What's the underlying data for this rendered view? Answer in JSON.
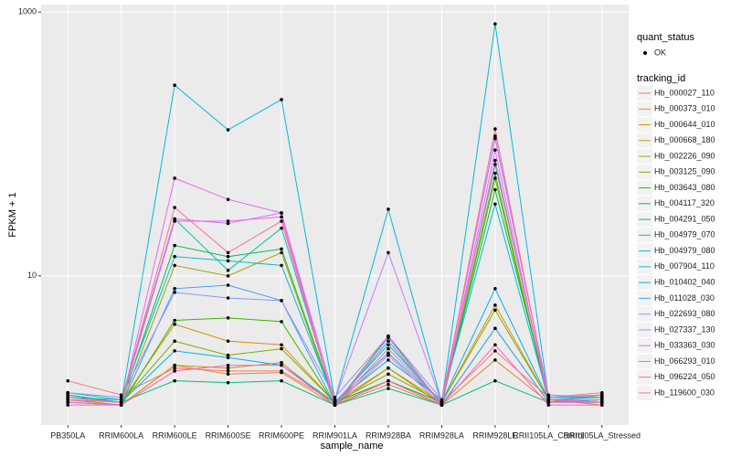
{
  "chart_data": {
    "type": "line",
    "log_y": true,
    "grid": true,
    "xlabel": "sample_name",
    "ylabel": "FPKM + 1",
    "categories": [
      "PB350LA",
      "RRIM600LA",
      "RRIM600LE",
      "RRIM600SE",
      "RRIM600PE",
      "RRIM901LA",
      "RRIM928BA",
      "RRIM928LA",
      "RRIM928LE",
      "RRII105LA_Control",
      "RRII105LA_Stressed"
    ],
    "ylim": [
      0.74,
      1140
    ],
    "yticks": [
      10,
      1000
    ],
    "point_legend": {
      "title": "quant_status",
      "label": "OK",
      "color": "#000000"
    },
    "legend_title": "tracking_id",
    "series": [
      {
        "name": "Hb_000027_110",
        "color": "#F8766D",
        "values": [
          1.6,
          1.25,
          2.0,
          1.9,
          1.9,
          1.1,
          1.6,
          1.1,
          2.7,
          1.2,
          1.3
        ]
      },
      {
        "name": "Hb_000373_010",
        "color": "#EA8331",
        "values": [
          1.15,
          1.05,
          2.1,
          1.8,
          1.85,
          1.05,
          1.5,
          1.05,
          2.3,
          1.1,
          1.15
        ]
      },
      {
        "name": "Hb_000644_010",
        "color": "#D89000",
        "values": [
          1.2,
          1.1,
          4.3,
          3.2,
          3.0,
          1.1,
          2.0,
          1.1,
          6.0,
          1.15,
          1.05
        ]
      },
      {
        "name": "Hb_000668_180",
        "color": "#C09B00",
        "values": [
          1.1,
          1.05,
          2.1,
          2.0,
          2.2,
          1.05,
          1.6,
          1.05,
          4.0,
          1.1,
          1.25
        ]
      },
      {
        "name": "Hb_002226_090",
        "color": "#A3A500",
        "values": [
          1.15,
          1.05,
          12,
          10,
          15,
          1.05,
          2.0,
          1.05,
          60,
          1.1,
          1.15
        ]
      },
      {
        "name": "Hb_003125_090",
        "color": "#7CAE00",
        "values": [
          1.2,
          1.1,
          3.2,
          2.5,
          2.8,
          1.1,
          1.8,
          1.1,
          5.5,
          1.15,
          1.1
        ]
      },
      {
        "name": "Hb_003643_080",
        "color": "#39B600",
        "values": [
          1.1,
          1.05,
          4.6,
          4.8,
          4.5,
          1.05,
          3.5,
          1.05,
          55,
          1.1,
          1.1
        ]
      },
      {
        "name": "Hb_004117_320",
        "color": "#00BB4E",
        "values": [
          1.25,
          1.1,
          17,
          14,
          16,
          1.1,
          1.6,
          1.1,
          45,
          1.2,
          1.2
        ]
      },
      {
        "name": "Hb_004291_050",
        "color": "#00BF7D",
        "values": [
          1.25,
          1.1,
          1.6,
          1.55,
          1.6,
          1.05,
          1.4,
          1.05,
          1.6,
          1.1,
          1.1
        ]
      },
      {
        "name": "Hb_004979_070",
        "color": "#00C1A3",
        "values": [
          1.3,
          1.15,
          27,
          11,
          23,
          1.1,
          3.0,
          1.1,
          70,
          1.2,
          1.2
        ]
      },
      {
        "name": "Hb_004979_080",
        "color": "#00BFC4",
        "values": [
          1.2,
          1.15,
          14,
          13,
          12,
          1.1,
          2.3,
          1.15,
          35,
          1.15,
          1.2
        ]
      },
      {
        "name": "Hb_007904_110",
        "color": "#00BAE0",
        "values": [
          1.2,
          1.1,
          279,
          128,
          217,
          1.15,
          32,
          1.1,
          813,
          1.2,
          1.25
        ]
      },
      {
        "name": "Hb_010402_040",
        "color": "#00B0F6",
        "values": [
          1.15,
          1.1,
          2.7,
          2.4,
          2.1,
          1.1,
          2.6,
          1.1,
          8.0,
          1.15,
          1.1
        ]
      },
      {
        "name": "Hb_011028_030",
        "color": "#35A2FF",
        "values": [
          1.1,
          1.05,
          8,
          8.5,
          6.5,
          1.05,
          3.2,
          1.05,
          4.0,
          1.1,
          1.15
        ]
      },
      {
        "name": "Hb_022693_080",
        "color": "#9590FF",
        "values": [
          1.3,
          1.2,
          7.5,
          6.8,
          6.5,
          1.2,
          3.5,
          1.15,
          110,
          1.25,
          1.2
        ]
      },
      {
        "name": "Hb_027337_130",
        "color": "#C77CFF",
        "values": [
          1.15,
          1.1,
          27,
          25,
          30,
          1.15,
          15,
          1.1,
          115,
          1.2,
          1.25
        ]
      },
      {
        "name": "Hb_033363_030",
        "color": "#E76BF3",
        "values": [
          1.1,
          1.05,
          55,
          38,
          30,
          1.05,
          3.4,
          1.05,
          90,
          1.1,
          1.1
        ]
      },
      {
        "name": "Hb_066293_010",
        "color": "#FA62DB",
        "values": [
          1.2,
          1.1,
          26,
          26,
          28,
          1.05,
          2.5,
          1.05,
          75,
          1.15,
          1.1
        ]
      },
      {
        "name": "Hb_096224_050",
        "color": "#FF62BC",
        "values": [
          1.05,
          1.05,
          1.9,
          2.1,
          2.1,
          1.05,
          1.6,
          1.05,
          3.0,
          1.05,
          1.05
        ]
      },
      {
        "name": "Hb_119600_030",
        "color": "#FF6C91",
        "values": [
          1.15,
          1.1,
          33,
          15,
          26,
          1.05,
          2.8,
          1.1,
          130,
          1.15,
          1.15
        ]
      }
    ]
  }
}
